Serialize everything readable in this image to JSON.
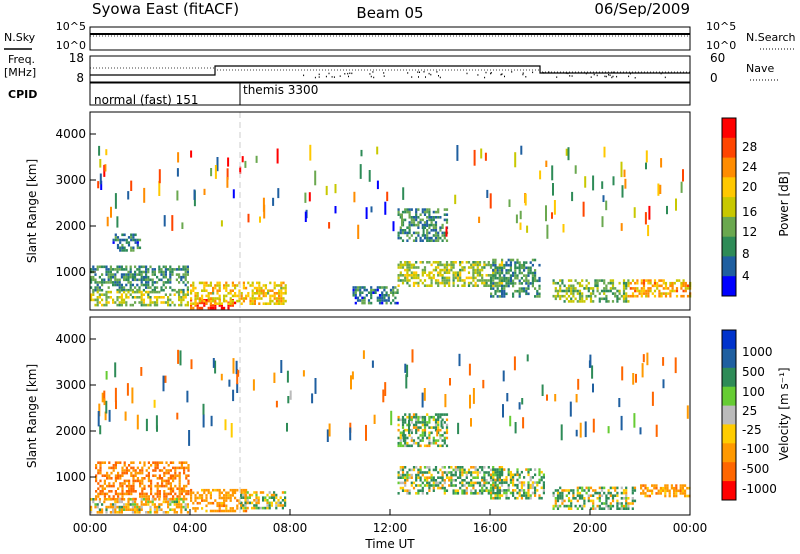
{
  "header": {
    "station": "Syowa East (fitACF)",
    "beam": "Beam 05",
    "date": "06/Sep/2009"
  },
  "noise_panel": {
    "left_label": "N.Sky",
    "left_ticks": [
      "10^5",
      "10^0"
    ],
    "right_label": "N.Search",
    "right_ticks": [
      "10^5",
      "10^0"
    ]
  },
  "freq_panel": {
    "left_label_1": "Freq.",
    "left_label_2": "[MHz]",
    "left_ticks": [
      "18",
      "8"
    ],
    "right_label": "Nave",
    "right_ticks": [
      "60",
      "0"
    ]
  },
  "cpid_panel": {
    "label": "CPID",
    "modes": [
      "normal (fast) 151",
      "themis 3300"
    ]
  },
  "x_axis": {
    "label": "Time UT",
    "ticks": [
      "00:00",
      "04:00",
      "08:00",
      "12:00",
      "16:00",
      "20:00",
      "00:00"
    ]
  },
  "power_panel": {
    "ylabel": "Slant Range [km]",
    "yticks": [
      "4000",
      "3000",
      "2000",
      "1000"
    ],
    "colorbar_label": "Power [dB]",
    "colorbar_ticks": [
      "28",
      "24",
      "20",
      "16",
      "12",
      "8",
      "4"
    ],
    "colorbar_colors": [
      "#ff0000",
      "#ff4500",
      "#ff8c00",
      "#ffc800",
      "#c8c800",
      "#6aa84f",
      "#2e8b57",
      "#1f5fa0",
      "#0000ff"
    ]
  },
  "velocity_panel": {
    "ylabel": "Slant Range [km]",
    "yticks": [
      "4000",
      "3000",
      "2000",
      "1000"
    ],
    "colorbar_label": "Velocity [m s⁻¹]",
    "colorbar_ticks": [
      "1000",
      "500",
      "100",
      "25",
      "-25",
      "-100",
      "-500",
      "-1000"
    ],
    "colorbar_colors": [
      "#0033cc",
      "#1f5fa0",
      "#2e8b57",
      "#66cc33",
      "#bbbbbb",
      "#ffcc00",
      "#ff9900",
      "#ff6600",
      "#ff0000"
    ]
  },
  "chart_data": [
    {
      "type": "line",
      "panel": "noise",
      "series": [
        {
          "name": "N.Sky",
          "x": [
            0,
            4,
            8,
            12,
            16,
            20,
            24
          ],
          "values": [
            4,
            4,
            4,
            4,
            4,
            4,
            4
          ]
        },
        {
          "name": "N.Search",
          "x": [
            0,
            4,
            8,
            12,
            16,
            20,
            24
          ],
          "values": [
            3.8,
            3.8,
            3.8,
            3.8,
            3.8,
            3.8,
            3.8
          ]
        }
      ],
      "ylim": [
        0,
        5
      ]
    },
    {
      "type": "line",
      "panel": "frequency",
      "series": [
        {
          "name": "Freq.",
          "x": [
            0,
            5,
            5,
            18,
            18,
            24
          ],
          "values": [
            10,
            10,
            12,
            12,
            10.5,
            10.5
          ]
        },
        {
          "name": "Nave",
          "x": [
            0,
            5,
            5,
            18,
            18,
            24
          ],
          "values": [
            45,
            45,
            44,
            44,
            40,
            40
          ]
        }
      ],
      "ylim_freq": [
        8,
        18
      ],
      "ylim_nave": [
        0,
        60
      ]
    },
    {
      "type": "table",
      "panel": "cpid",
      "columns": [
        "start_hour",
        "end_hour",
        "mode"
      ],
      "rows": [
        [
          0,
          6,
          "normal (fast) 151"
        ],
        [
          6,
          24,
          "themis 3300"
        ]
      ]
    },
    {
      "type": "heatmap",
      "panel": "power",
      "xlim": [
        0,
        24
      ],
      "ylim": [
        180,
        4500
      ],
      "value_range": [
        0,
        30
      ],
      "regions": [
        {
          "x": [
            0.0,
            3.9
          ],
          "y": [
            600,
            1150
          ],
          "value": 8
        },
        {
          "x": [
            0.0,
            3.9
          ],
          "y": [
            280,
            600
          ],
          "value": 14
        },
        {
          "x": [
            0.9,
            2.0
          ],
          "y": [
            1500,
            1850
          ],
          "value": 6
        },
        {
          "x": [
            4.0,
            5.8
          ],
          "y": [
            200,
            420
          ],
          "value": 28
        },
        {
          "x": [
            4.0,
            7.8
          ],
          "y": [
            300,
            800
          ],
          "value": 18
        },
        {
          "x": [
            10.5,
            12.3
          ],
          "y": [
            350,
            700
          ],
          "value": 6
        },
        {
          "x": [
            12.3,
            14.3
          ],
          "y": [
            1700,
            2400
          ],
          "value": 8
        },
        {
          "x": [
            12.3,
            16.5
          ],
          "y": [
            700,
            1250
          ],
          "value": 14
        },
        {
          "x": [
            16.0,
            18.0
          ],
          "y": [
            500,
            1300
          ],
          "value": 8
        },
        {
          "x": [
            18.5,
            21.5
          ],
          "y": [
            350,
            850
          ],
          "value": 12
        },
        {
          "x": [
            21.5,
            24.0
          ],
          "y": [
            500,
            850
          ],
          "value": 20
        }
      ]
    },
    {
      "type": "heatmap",
      "panel": "velocity",
      "xlim": [
        0,
        24
      ],
      "ylim": [
        180,
        4500
      ],
      "value_range": [
        -1000,
        1000
      ],
      "regions": [
        {
          "x": [
            0.2,
            3.9
          ],
          "y": [
            550,
            1350
          ],
          "value": -500
        },
        {
          "x": [
            0.0,
            3.9
          ],
          "y": [
            250,
            550
          ],
          "value": -100
        },
        {
          "x": [
            4.0,
            6.2
          ],
          "y": [
            250,
            750
          ],
          "value": -300
        },
        {
          "x": [
            6.0,
            7.8
          ],
          "y": [
            350,
            700
          ],
          "value": 0
        },
        {
          "x": [
            12.3,
            14.3
          ],
          "y": [
            1700,
            2400
          ],
          "value": 100
        },
        {
          "x": [
            12.3,
            16.5
          ],
          "y": [
            650,
            1250
          ],
          "value": 80
        },
        {
          "x": [
            16.0,
            18.2
          ],
          "y": [
            550,
            1200
          ],
          "value": 100
        },
        {
          "x": [
            18.5,
            21.8
          ],
          "y": [
            300,
            800
          ],
          "value": 60
        },
        {
          "x": [
            22.0,
            24.0
          ],
          "y": [
            600,
            850
          ],
          "value": -300
        }
      ]
    }
  ]
}
